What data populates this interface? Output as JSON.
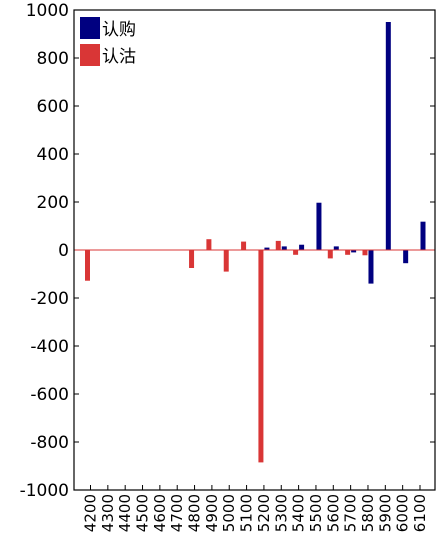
{
  "chart_data": {
    "type": "bar",
    "title": "",
    "xlabel": "",
    "ylabel": "",
    "ylim": [
      -1000,
      1000
    ],
    "yticks": [
      -1000,
      -800,
      -600,
      -400,
      -200,
      0,
      200,
      400,
      600,
      800,
      1000
    ],
    "categories": [
      "4200",
      "4300",
      "4400",
      "4500",
      "4600",
      "4700",
      "4800",
      "4900",
      "5000",
      "5100",
      "5200",
      "5300",
      "5400",
      "5500",
      "5600",
      "5700",
      "5800",
      "5900",
      "6000",
      "6100"
    ],
    "series": [
      {
        "name": "认购",
        "color": "#000080",
        "values": [
          0,
          0,
          0,
          0,
          0,
          0,
          0,
          0,
          0,
          0,
          10,
          15,
          22,
          197,
          15,
          -10,
          -140,
          950,
          -55,
          118
        ]
      },
      {
        "name": "认沽",
        "color": "#d93636",
        "values": [
          -128,
          0,
          0,
          0,
          0,
          0,
          -75,
          45,
          -90,
          35,
          -885,
          38,
          -20,
          0,
          -35,
          -20,
          -22,
          0,
          0,
          0
        ]
      }
    ],
    "legend_position": "top-left",
    "grid": false
  }
}
